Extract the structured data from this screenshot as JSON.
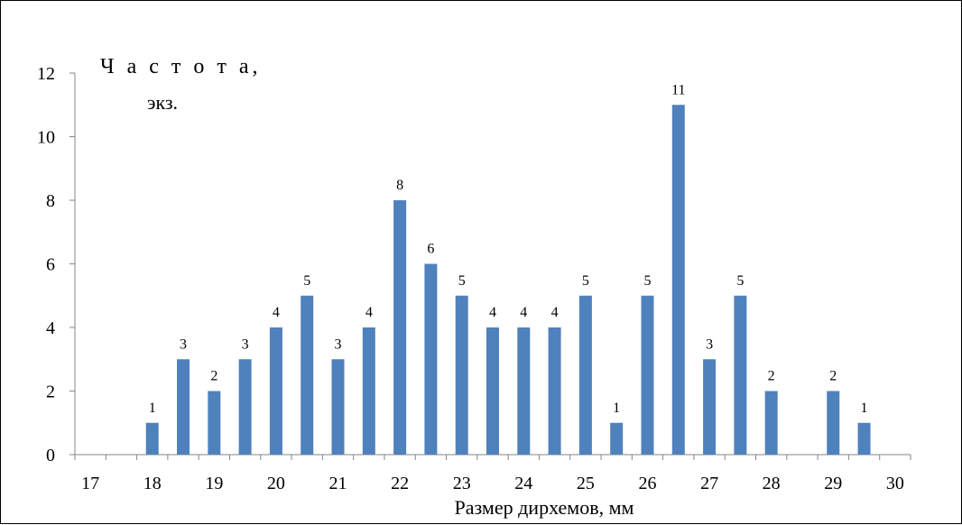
{
  "chart_data": {
    "type": "bar",
    "xlabel": "Размер дирхемов, мм",
    "ylabel_line1": "Ч а с т о т а,",
    "ylabel_line2": "экз.",
    "ylim": [
      0,
      12
    ],
    "yticks": [
      0,
      2,
      4,
      6,
      8,
      10,
      12
    ],
    "xlim": [
      16.75,
      30.25
    ],
    "xticks": [
      17,
      18,
      19,
      20,
      21,
      22,
      23,
      24,
      25,
      26,
      27,
      28,
      29,
      30
    ],
    "x": [
      18,
      18.5,
      19,
      19.5,
      20,
      20.5,
      21,
      21.5,
      22,
      22.5,
      23,
      23.5,
      24,
      24.5,
      25,
      25.5,
      26,
      26.5,
      27,
      27.5,
      28,
      29,
      29.5
    ],
    "values": [
      1,
      3,
      2,
      3,
      4,
      5,
      3,
      4,
      8,
      6,
      5,
      4,
      4,
      4,
      5,
      1,
      5,
      11,
      3,
      5,
      2,
      2,
      1
    ],
    "bar_color": "#4F81BD",
    "grid": false,
    "data_labels": true
  }
}
